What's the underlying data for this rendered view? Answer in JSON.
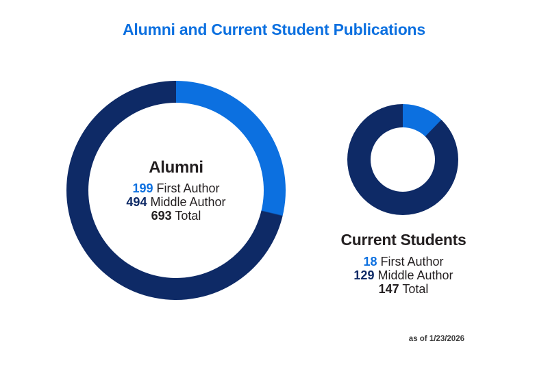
{
  "title": "Alumni and Current Student Publications",
  "footnote": "as of 1/23/2026",
  "colors": {
    "bright_blue": "#0c70e0",
    "navy": "#0e2a66",
    "dark_text": "#231f20",
    "footnote_text": "#3a3a3a",
    "background": "#ffffff"
  },
  "alumni": {
    "heading": "Alumni",
    "stats": [
      {
        "value": "199",
        "label": "First Author"
      },
      {
        "value": "494",
        "label": "Middle Author"
      },
      {
        "value": "693",
        "label": "Total"
      }
    ]
  },
  "current_students": {
    "heading": "Current Students",
    "stats": [
      {
        "value": "18",
        "label": "First Author"
      },
      {
        "value": "129",
        "label": "Middle Author"
      },
      {
        "value": "147",
        "label": "Total"
      }
    ]
  },
  "chart_data": [
    {
      "type": "pie",
      "subtype": "donut",
      "title": "Alumni",
      "labels": [
        "First Author",
        "Middle Author"
      ],
      "values": [
        199,
        494
      ],
      "total": 693,
      "colors": [
        "#0c70e0",
        "#0e2a66"
      ],
      "start_angle_deg": 0,
      "direction": "clockwise",
      "legend": "none",
      "center_label": "Alumni"
    },
    {
      "type": "pie",
      "subtype": "donut",
      "title": "Current Students",
      "labels": [
        "First Author",
        "Middle Author"
      ],
      "values": [
        18,
        129
      ],
      "total": 147,
      "colors": [
        "#0c70e0",
        "#0e2a66"
      ],
      "start_angle_deg": 0,
      "direction": "clockwise",
      "legend": "none",
      "center_label": ""
    }
  ]
}
